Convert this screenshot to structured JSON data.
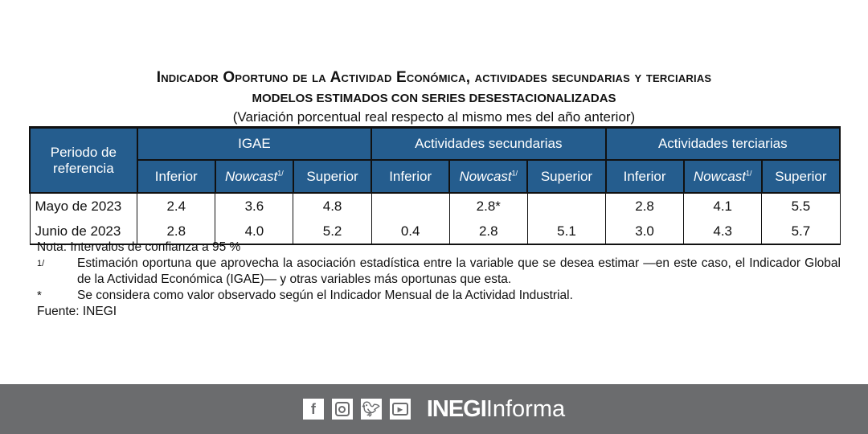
{
  "title": "Indicador Oportuno de la Actividad Económica, actividades secundarias y terciarias",
  "subtitle": "MODELOS ESTIMADOS CON SERIES DESESTACIONALIZADAS",
  "unit": "(Variación porcentual real respecto al mismo mes del año anterior)",
  "table": {
    "period_header": "Periodo de referencia",
    "groups": [
      "IGAE",
      "Actividades secundarias",
      "Actividades terciarias"
    ],
    "subheaders": {
      "inferior": "Inferior",
      "nowcast": "Nowcast",
      "nowcast_note": "1/",
      "superior": "Superior"
    },
    "rows": [
      {
        "period": "Mayo de 2023",
        "values": [
          "2.4",
          "3.6",
          "4.8",
          "",
          "2.8*",
          "",
          "2.8",
          "4.1",
          "5.5"
        ]
      },
      {
        "period": "Junio de 2023",
        "values": [
          "2.8",
          "4.0",
          "5.2",
          "0.4",
          "2.8",
          "5.1",
          "3.0",
          "4.3",
          "5.7"
        ]
      }
    ]
  },
  "notes": {
    "nota": "Nota:  Intervalos de confianza a 95 %",
    "fn1_mark": "1/",
    "fn1": "Estimación oportuna que aprovecha la asociación estadística entre la variable que se desea estimar —en este caso, el Indicador Global de la Actividad Económica (IGAE)— y otras variables más oportunas que esta.",
    "fn2_mark": "*",
    "fn2": "Se considera como valor observado según el Indicador Mensual de la Actividad Industrial.",
    "source": "Fuente: INEGI"
  },
  "footer": {
    "icons": [
      "facebook-icon",
      "instagram-icon",
      "twitter-icon",
      "youtube-icon"
    ],
    "brand_bold": "INEGI",
    "brand_rest": "Informa",
    "bg_color": "#6b6c6e"
  },
  "colors": {
    "header_bg": "#255d8e"
  }
}
